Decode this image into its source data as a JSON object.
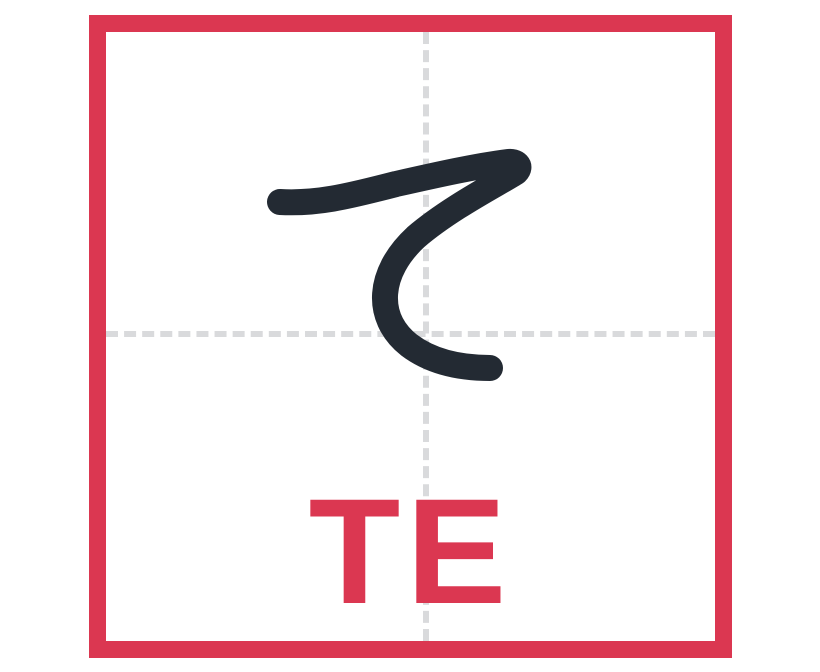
{
  "kana": {
    "character": "て",
    "romaji": "TE"
  },
  "colors": {
    "frame": "#db3751",
    "guides": "#d9dadc",
    "stroke": "#232a33",
    "romaji": "#db3751"
  }
}
